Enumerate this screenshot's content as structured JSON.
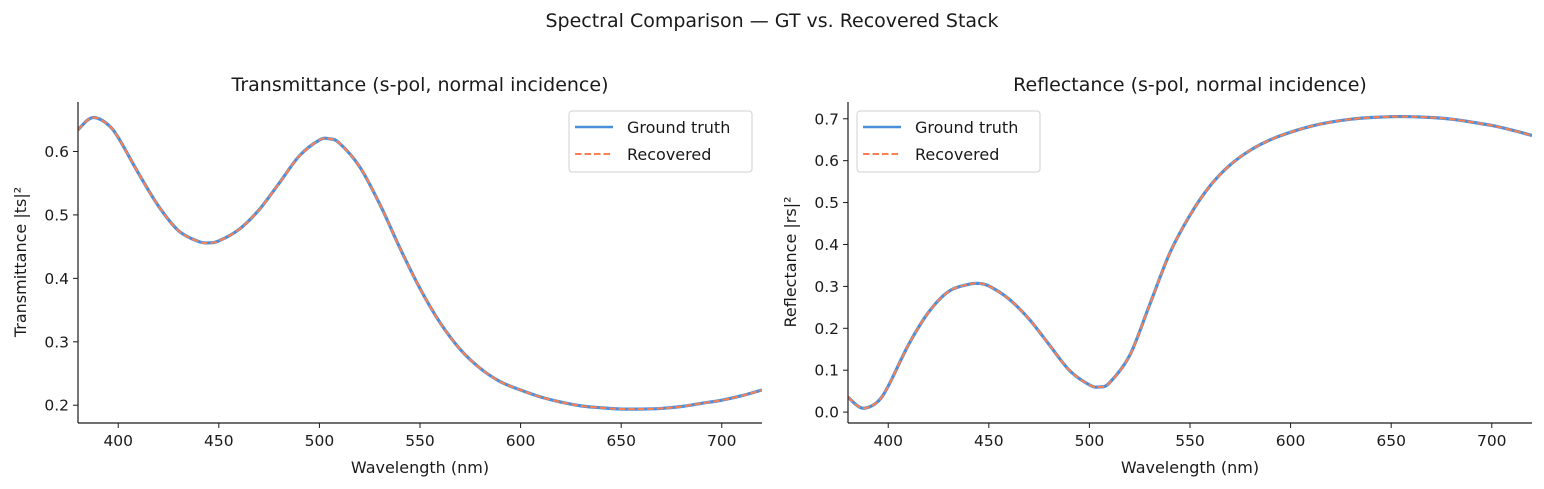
{
  "figure_title": "Spectral Comparison — GT vs. Recovered Stack",
  "colors": {
    "ground_truth": "#4a8fd9",
    "recovered": "#ff7f50",
    "axis": "#1a1a1a"
  },
  "chart_data": [
    {
      "type": "line",
      "title": "Transmittance (s-pol, normal incidence)",
      "xlabel": "Wavelength (nm)",
      "ylabel": "Transmittance  |ts|²",
      "xlim": [
        380,
        720
      ],
      "ylim": [
        0.172,
        0.678
      ],
      "xticks": [
        400,
        450,
        500,
        550,
        600,
        650,
        700
      ],
      "xtick_labels": [
        "400",
        "450",
        "500",
        "550",
        "600",
        "650",
        "700"
      ],
      "yticks": [
        0.2,
        0.3,
        0.4,
        0.5,
        0.6
      ],
      "ytick_labels": [
        "0.2",
        "0.3",
        "0.4",
        "0.5",
        "0.6"
      ],
      "grid": false,
      "legend_position": "top-right",
      "x": [
        380,
        385,
        389,
        395,
        400,
        410,
        420,
        430,
        440,
        445,
        450,
        460,
        470,
        480,
        490,
        500,
        505,
        510,
        520,
        530,
        540,
        550,
        560,
        570,
        580,
        590,
        600,
        610,
        620,
        630,
        640,
        650,
        660,
        670,
        680,
        690,
        700,
        710,
        720
      ],
      "series": [
        {
          "name": "Ground truth",
          "style": "solid",
          "values": [
            0.634,
            0.65,
            0.653,
            0.642,
            0.622,
            0.566,
            0.514,
            0.475,
            0.458,
            0.456,
            0.459,
            0.477,
            0.508,
            0.55,
            0.593,
            0.618,
            0.62,
            0.613,
            0.576,
            0.517,
            0.448,
            0.384,
            0.33,
            0.288,
            0.258,
            0.237,
            0.224,
            0.213,
            0.205,
            0.199,
            0.196,
            0.194,
            0.194,
            0.195,
            0.198,
            0.203,
            0.208,
            0.215,
            0.224
          ]
        },
        {
          "name": "Recovered",
          "style": "dashed",
          "values": [
            0.634,
            0.65,
            0.653,
            0.642,
            0.622,
            0.566,
            0.514,
            0.475,
            0.458,
            0.456,
            0.459,
            0.477,
            0.508,
            0.55,
            0.593,
            0.618,
            0.62,
            0.613,
            0.576,
            0.517,
            0.448,
            0.384,
            0.33,
            0.288,
            0.258,
            0.237,
            0.224,
            0.213,
            0.205,
            0.199,
            0.196,
            0.194,
            0.194,
            0.195,
            0.198,
            0.203,
            0.208,
            0.215,
            0.224
          ]
        }
      ]
    },
    {
      "type": "line",
      "title": "Reflectance (s-pol, normal incidence)",
      "xlabel": "Wavelength (nm)",
      "ylabel": "Reflectance  |rs|²",
      "xlim": [
        380,
        720
      ],
      "ylim": [
        -0.026,
        0.74
      ],
      "xticks": [
        400,
        450,
        500,
        550,
        600,
        650,
        700
      ],
      "xtick_labels": [
        "400",
        "450",
        "500",
        "550",
        "600",
        "650",
        "700"
      ],
      "yticks": [
        0.0,
        0.1,
        0.2,
        0.3,
        0.4,
        0.5,
        0.6,
        0.7
      ],
      "ytick_labels": [
        "0.0",
        "0.1",
        "0.2",
        "0.3",
        "0.4",
        "0.5",
        "0.6",
        "0.7"
      ],
      "grid": false,
      "legend_position": "top-left",
      "x": [
        380,
        385,
        389,
        395,
        400,
        410,
        420,
        430,
        440,
        445,
        450,
        460,
        470,
        480,
        490,
        500,
        505,
        510,
        520,
        530,
        540,
        550,
        560,
        570,
        580,
        590,
        600,
        610,
        620,
        630,
        640,
        650,
        660,
        670,
        680,
        690,
        700,
        710,
        720
      ],
      "series": [
        {
          "name": "Ground truth",
          "style": "solid",
          "values": [
            0.036,
            0.014,
            0.01,
            0.026,
            0.062,
            0.16,
            0.238,
            0.288,
            0.305,
            0.307,
            0.301,
            0.27,
            0.222,
            0.161,
            0.1,
            0.065,
            0.06,
            0.07,
            0.135,
            0.257,
            0.38,
            0.47,
            0.54,
            0.59,
            0.625,
            0.65,
            0.668,
            0.682,
            0.692,
            0.699,
            0.703,
            0.705,
            0.705,
            0.703,
            0.699,
            0.692,
            0.684,
            0.673,
            0.66
          ]
        },
        {
          "name": "Recovered",
          "style": "dashed",
          "values": [
            0.036,
            0.014,
            0.01,
            0.026,
            0.062,
            0.16,
            0.238,
            0.288,
            0.305,
            0.307,
            0.301,
            0.27,
            0.222,
            0.161,
            0.1,
            0.065,
            0.06,
            0.07,
            0.135,
            0.257,
            0.38,
            0.47,
            0.54,
            0.59,
            0.625,
            0.65,
            0.668,
            0.682,
            0.692,
            0.699,
            0.703,
            0.705,
            0.705,
            0.703,
            0.699,
            0.692,
            0.684,
            0.673,
            0.66
          ]
        }
      ]
    }
  ]
}
